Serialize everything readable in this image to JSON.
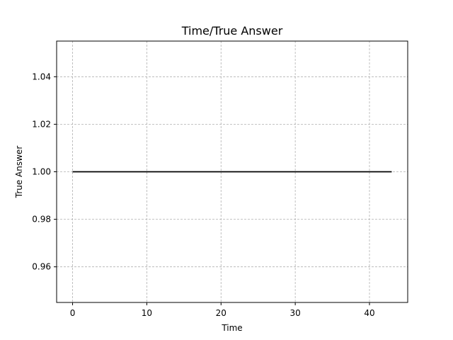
{
  "chart_data": {
    "type": "line",
    "title": "Time/True Answer",
    "xlabel": "Time",
    "ylabel": "True Answer",
    "xlim": [
      -2.15,
      45.15
    ],
    "ylim": [
      0.945,
      1.055
    ],
    "x_ticks": [
      0,
      10,
      20,
      30,
      40
    ],
    "y_ticks": [
      0.96,
      0.98,
      1.0,
      1.02,
      1.04
    ],
    "x_tick_labels": [
      "0",
      "10",
      "20",
      "30",
      "40"
    ],
    "y_tick_labels": [
      "0.96",
      "0.98",
      "1.00",
      "1.02",
      "1.04"
    ],
    "grid": true,
    "series": [
      {
        "color": "#000000",
        "x": [
          0,
          43
        ],
        "y": [
          1.0,
          1.0
        ]
      }
    ]
  }
}
